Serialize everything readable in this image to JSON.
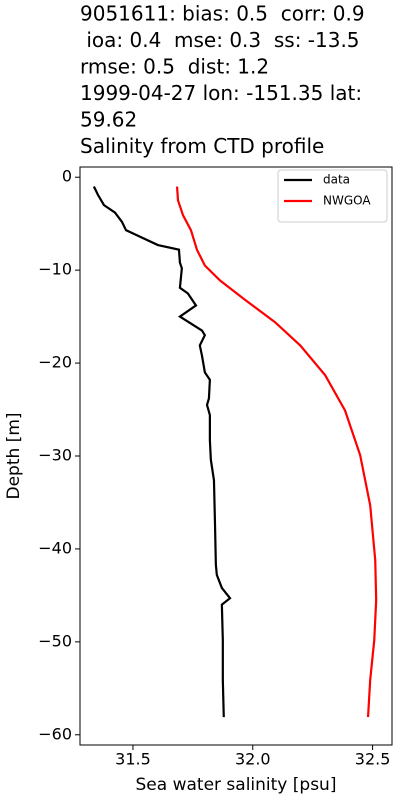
{
  "chart_data": {
    "type": "line",
    "title": [
      "9051611: bias: 0.5  corr: 0.9",
      " ioa: 0.4  mse: 0.3  ss: -13.5",
      "rmse: 0.5  dist: 1.2",
      "1999-04-27 lon: -151.35 lat:",
      "59.62",
      "Salinity from CTD profile"
    ],
    "x_label": "Sea water salinity [psu]",
    "y_label": "Depth [m]",
    "xlim": [
      31.279,
      32.581
    ],
    "ylim": [
      -61.1,
      1.1
    ],
    "xticks": [
      31.5,
      {
        "value": 32.0,
        "label": "32.0"
      },
      32.5
    ],
    "yticks": [
      0,
      {
        "value": -10,
        "label": "−10"
      },
      {
        "value": -20,
        "label": "−20"
      },
      {
        "value": -30,
        "label": "−30"
      },
      {
        "value": -40,
        "label": "−40"
      },
      {
        "value": -50,
        "label": "−50"
      },
      {
        "value": -60,
        "label": "−60"
      }
    ],
    "legend": "upper right",
    "series": [
      {
        "name": "data",
        "color": "#000000",
        "x": [
          31.337,
          31.354,
          31.379,
          31.425,
          31.454,
          31.471,
          31.513,
          31.604,
          31.692,
          31.696,
          31.704,
          31.696,
          31.729,
          31.763,
          31.696,
          31.788,
          31.8,
          31.779,
          31.788,
          31.8,
          31.821,
          31.817,
          31.809,
          31.821,
          31.821,
          31.825,
          31.838,
          31.842,
          31.846,
          31.85,
          31.871,
          31.905,
          31.871,
          31.875,
          31.875,
          31.879
        ],
        "values": [
          -1.0,
          -1.9,
          -3.0,
          -3.8,
          -4.8,
          -5.7,
          -6.2,
          -7.3,
          -7.8,
          -9.2,
          -9.8,
          -11.9,
          -12.5,
          -13.8,
          -15.0,
          -16.5,
          -17.0,
          -18.1,
          -19.2,
          -21.0,
          -21.8,
          -23.8,
          -24.5,
          -25.6,
          -28.3,
          -30.4,
          -32.6,
          -36.9,
          -41.7,
          -42.8,
          -44.2,
          -45.3,
          -46.0,
          -49.8,
          -54.1,
          -58.1
        ]
      },
      {
        "name": "NWGOA",
        "color": "#ff0000",
        "x": [
          31.684,
          31.688,
          31.709,
          31.742,
          31.767,
          31.8,
          31.863,
          31.968,
          32.093,
          32.198,
          32.302,
          32.385,
          32.448,
          32.49,
          32.511,
          32.515,
          32.507,
          32.49,
          32.481
        ],
        "values": [
          -1.0,
          -2.5,
          -4.1,
          -5.7,
          -7.8,
          -9.5,
          -11.1,
          -13.2,
          -15.6,
          -18.1,
          -21.3,
          -25.1,
          -29.9,
          -35.3,
          -41.2,
          -45.5,
          -49.8,
          -54.1,
          -58.1
        ]
      }
    ]
  }
}
